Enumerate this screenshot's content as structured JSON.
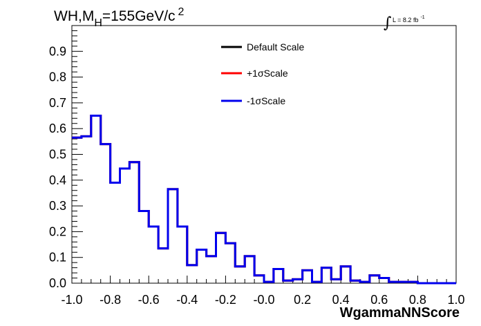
{
  "chart_data": {
    "type": "histogram",
    "title_main": "WH,M",
    "title_sub": "H",
    "title_rest": "=155GeV/c",
    "title_sup": "2",
    "lumi_main": "L = 8.2 fb",
    "lumi_sup": "-1",
    "xlabel": "WgammaNNScore",
    "xlim": [
      -1.0,
      1.0
    ],
    "ylim": [
      0.0,
      1.0
    ],
    "x_ticks": [
      "-1.0",
      "-0.8",
      "-0.6",
      "-0.4",
      "-0.2",
      "-0.0",
      "0.2",
      "0.4",
      "0.6",
      "0.8",
      "1.0"
    ],
    "y_ticks": [
      "0.0",
      "0.1",
      "0.2",
      "0.3",
      "0.4",
      "0.5",
      "0.6",
      "0.7",
      "0.8",
      "0.9"
    ],
    "legend": "top-center",
    "bin_edges": [
      -1.0,
      -0.95,
      -0.9,
      -0.85,
      -0.8,
      -0.75,
      -0.7,
      -0.65,
      -0.6,
      -0.55,
      -0.5,
      -0.45,
      -0.4,
      -0.35,
      -0.3,
      -0.25,
      -0.2,
      -0.15,
      -0.1,
      -0.05,
      0.0,
      0.05,
      0.1,
      0.15,
      0.2,
      0.25,
      0.3,
      0.35,
      0.4,
      0.45,
      0.5,
      0.55,
      0.6,
      0.65,
      0.7,
      0.75,
      0.8,
      0.85,
      0.9,
      0.95,
      1.0
    ],
    "series": [
      {
        "name": "Default Scale",
        "color": "#000000",
        "values": [
          0.565,
          0.57,
          0.65,
          0.54,
          0.39,
          0.445,
          0.47,
          0.28,
          0.22,
          0.135,
          0.365,
          0.22,
          0.07,
          0.13,
          0.105,
          0.195,
          0.155,
          0.065,
          0.105,
          0.03,
          0.005,
          0.055,
          0.01,
          0.015,
          0.05,
          0.005,
          0.06,
          0.015,
          0.065,
          0.01,
          0.005,
          0.03,
          0.02,
          0.005,
          0.005,
          0.005,
          0.0,
          0.0,
          0.0,
          0.0
        ]
      },
      {
        "name": "+1σScale",
        "color": "#ff0000",
        "values": [
          0.565,
          0.57,
          0.65,
          0.54,
          0.39,
          0.445,
          0.47,
          0.28,
          0.22,
          0.135,
          0.365,
          0.22,
          0.07,
          0.13,
          0.105,
          0.195,
          0.155,
          0.065,
          0.105,
          0.03,
          0.005,
          0.055,
          0.01,
          0.015,
          0.05,
          0.005,
          0.06,
          0.015,
          0.065,
          0.01,
          0.005,
          0.03,
          0.02,
          0.005,
          0.005,
          0.005,
          0.0,
          0.0,
          0.0,
          0.0
        ]
      },
      {
        "name": "-1σScale",
        "color": "#0000ee",
        "values": [
          0.565,
          0.57,
          0.65,
          0.54,
          0.39,
          0.445,
          0.47,
          0.28,
          0.22,
          0.135,
          0.365,
          0.22,
          0.07,
          0.13,
          0.105,
          0.195,
          0.155,
          0.065,
          0.105,
          0.03,
          0.005,
          0.055,
          0.01,
          0.015,
          0.05,
          0.005,
          0.06,
          0.015,
          0.065,
          0.01,
          0.005,
          0.03,
          0.02,
          0.005,
          0.005,
          0.005,
          0.0,
          0.0,
          0.0,
          0.0
        ]
      }
    ]
  }
}
